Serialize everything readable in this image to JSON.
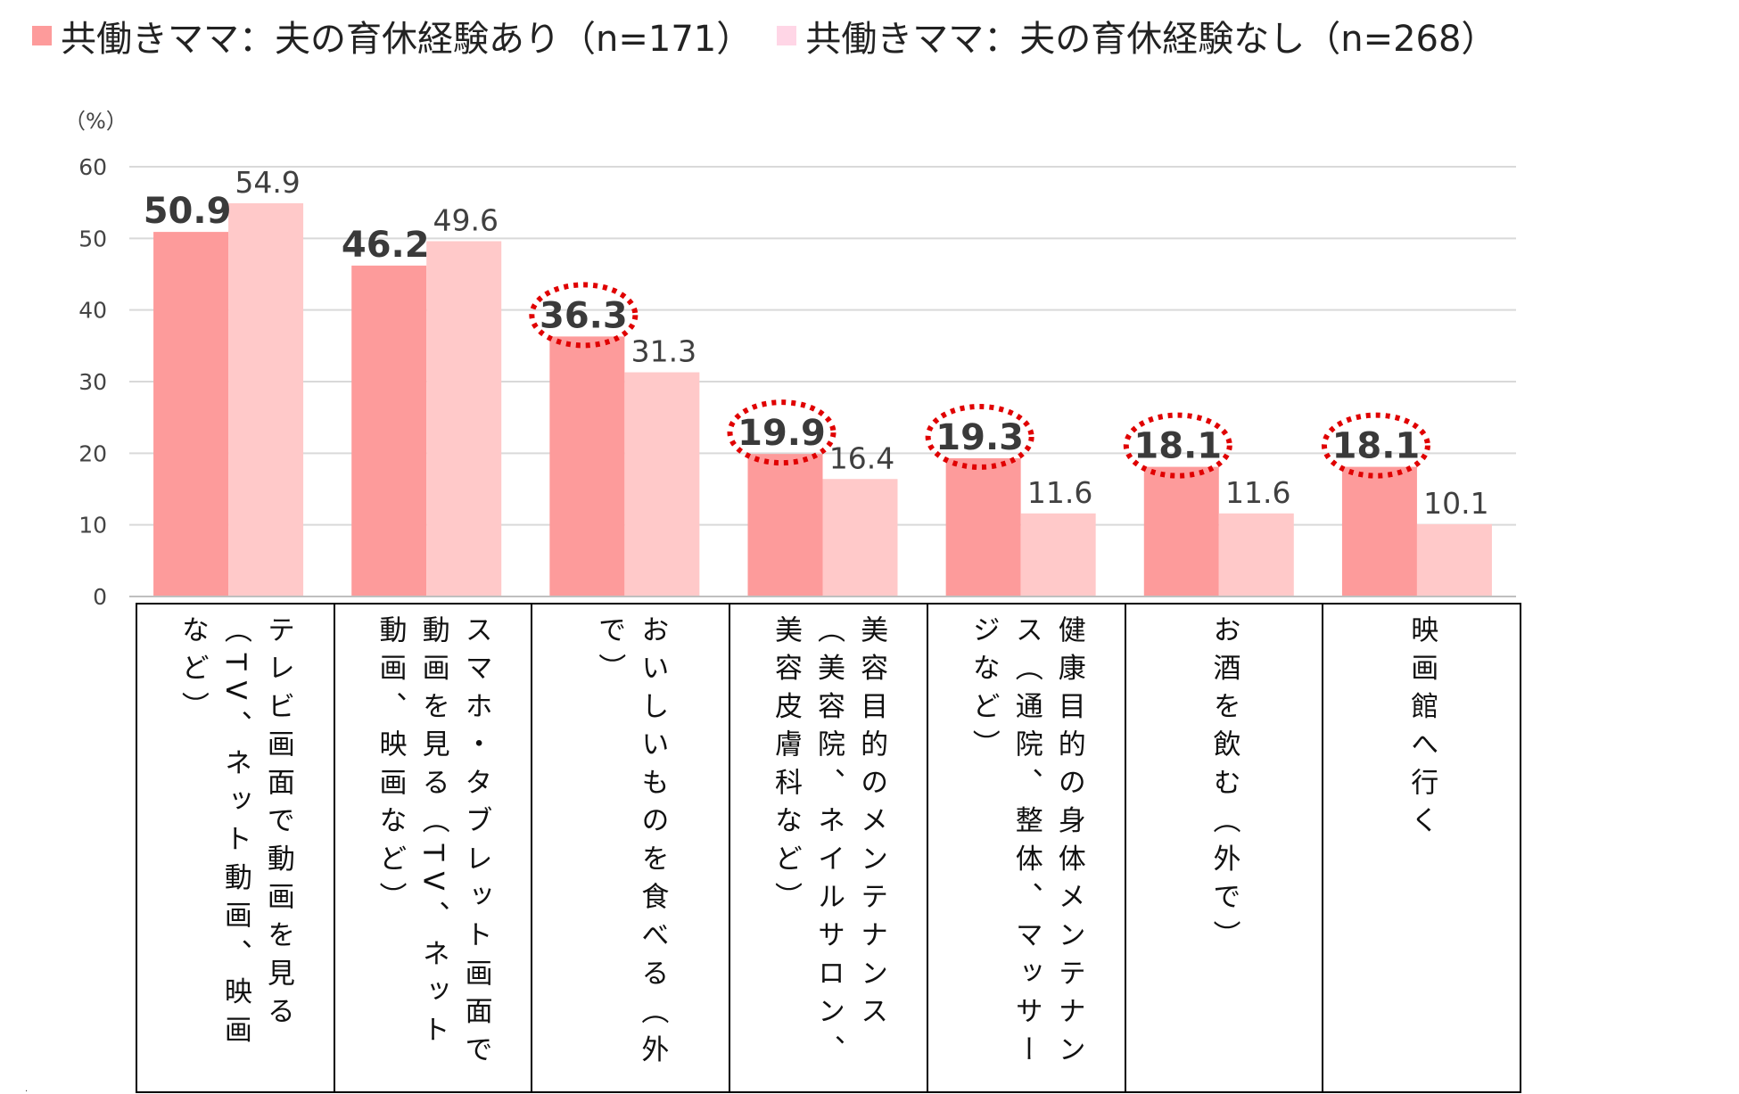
{
  "legend": [
    {
      "label": "共働きママ：夫の育休経験あり（n=171）",
      "color": "#fd9b9b"
    },
    {
      "label": "共働きママ：夫の育休経験なし（n=268）",
      "color": "#ffd6e6"
    }
  ],
  "unit_label": "（%）",
  "stray_mark": ".",
  "chart_data": {
    "type": "bar",
    "categories": [
      "テレビ画面で動画を見る（TV、ネット動画、映画など）",
      "スマホ・タブレット画面で動画を見る（TV、ネット動画、映画など）",
      "おいしいものを食べる（外で）",
      "美容目的のメンテナンス（美容院、ネイルサロン、美容皮膚科など）",
      "健康目的の身体メンテナンス（通院、整体、マッサージなど）",
      "お酒を飲む（外で）",
      "映画館へ行く"
    ],
    "series": [
      {
        "name": "共働きママ：夫の育休経験あり（n=171）",
        "values": [
          50.9,
          46.2,
          36.3,
          19.9,
          19.3,
          18.1,
          18.1
        ],
        "color": "#fd9b9b"
      },
      {
        "name": "共働きママ：夫の育休経験なし（n=268）",
        "values": [
          54.9,
          49.6,
          31.3,
          16.4,
          11.6,
          11.6,
          10.1
        ],
        "color": "#ffc9c9"
      }
    ],
    "ylim": [
      0,
      60
    ],
    "yticks": [
      0,
      10,
      20,
      30,
      40,
      50,
      60
    ],
    "ylabel": "（%）",
    "grid": true,
    "legend_position": "top",
    "highlighted_series": 0,
    "highlighted_categories": [
      2,
      3,
      4,
      5,
      6
    ],
    "highlight_color": "#e00000"
  }
}
